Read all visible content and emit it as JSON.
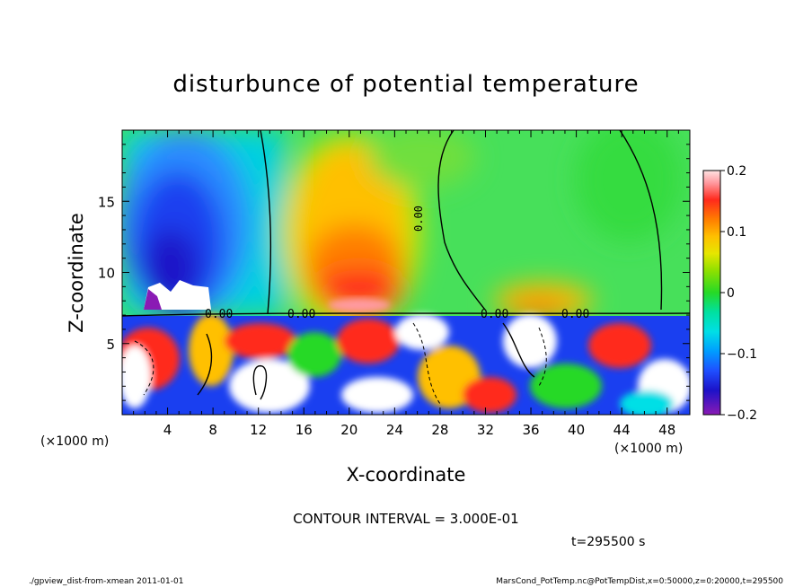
{
  "chart_data": {
    "type": "heatmap",
    "title": "disturbunce of potential temperature",
    "xlabel": "X-coordinate",
    "ylabel": "Z-coordinate",
    "x_unit_label": "(×1000 m)",
    "y_unit_label": "(×1000 m)",
    "xlim": [
      0,
      50
    ],
    "ylim": [
      0,
      20
    ],
    "x_ticks": [
      "4",
      "8",
      "12",
      "16",
      "20",
      "24",
      "28",
      "32",
      "36",
      "40",
      "44",
      "48"
    ],
    "y_ticks": [
      "5",
      "10",
      "15"
    ],
    "colorbar": {
      "range": [
        -0.2,
        0.2
      ],
      "tick_labels": [
        "0.2",
        "0.1",
        "0",
        "−0.1",
        "−0.2"
      ],
      "tick_values": [
        0.2,
        0.1,
        0,
        -0.1,
        -0.2
      ]
    },
    "contour_labels": [
      "0.00",
      "0.00",
      "0.00",
      "0.00",
      "0.00"
    ],
    "contour_interval_text": "CONTOUR INTERVAL = 3.000E-01",
    "time_text": "t=295500 s",
    "footer_left": "./gpview_dist-from-xmean  2011-01-01",
    "footer_right": "MarsCond_PotTemp.nc@PotTempDist,x=0:50000,z=0:20000,t=295500",
    "features": [
      {
        "x": 5,
        "z": 14,
        "value": -0.17
      },
      {
        "x": 4.5,
        "z": 8.5,
        "value": -0.21
      },
      {
        "x": 20.5,
        "z": 13,
        "value": 0.11
      },
      {
        "x": 20.5,
        "z": 9.5,
        "value": 0.18
      },
      {
        "x": 38,
        "z": 9,
        "value": 0.12
      },
      {
        "x": 27,
        "z": 16,
        "value": -0.02
      }
    ]
  }
}
